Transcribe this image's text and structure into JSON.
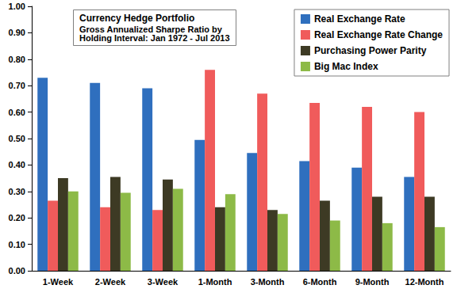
{
  "chart_data": {
    "type": "bar",
    "title": "Currency Hedge Portfolio",
    "subtitle": "Gross Annualized Sharpe Ratio by Holding Interval: Jan 1972 - Jul 2013",
    "categories": [
      "1-Week",
      "2-Week",
      "3-Week",
      "1-Month",
      "3-Month",
      "6-Month",
      "9-Month",
      "12-Month"
    ],
    "series": [
      {
        "name": "Real Exchange Rate",
        "color": "#2f6fbe",
        "values": [
          0.73,
          0.71,
          0.69,
          0.495,
          0.445,
          0.415,
          0.39,
          0.355
        ]
      },
      {
        "name": "Real Exchange Rate Change",
        "color": "#f05b5b",
        "values": [
          0.265,
          0.24,
          0.23,
          0.76,
          0.67,
          0.635,
          0.62,
          0.6
        ]
      },
      {
        "name": "Purchasing Power Parity",
        "color": "#3d3a24",
        "values": [
          0.35,
          0.355,
          0.345,
          0.24,
          0.23,
          0.265,
          0.28,
          0.28
        ]
      },
      {
        "name": "Big Mac Index",
        "color": "#8dba47",
        "values": [
          0.3,
          0.295,
          0.31,
          0.29,
          0.215,
          0.19,
          0.18,
          0.165
        ]
      }
    ],
    "ylim": [
      0,
      1
    ],
    "yticks": [
      {
        "value": 0,
        "label": "0.00"
      },
      {
        "value": 0.1,
        "label": "0.10"
      },
      {
        "value": 0.2,
        "label": "0.20"
      },
      {
        "value": 0.3,
        "label": "0.30"
      },
      {
        "value": 0.4,
        "label": "0.40"
      },
      {
        "value": 0.5,
        "label": "0.50"
      },
      {
        "value": 0.6,
        "label": "0.60"
      },
      {
        "value": 0.7,
        "label": "0.70"
      },
      {
        "value": 0.8,
        "label": "0.80"
      },
      {
        "value": 0.9,
        "label": "0.90"
      },
      {
        "value": 1,
        "label": "1.00"
      }
    ],
    "grid": false,
    "legend": "top-right"
  }
}
